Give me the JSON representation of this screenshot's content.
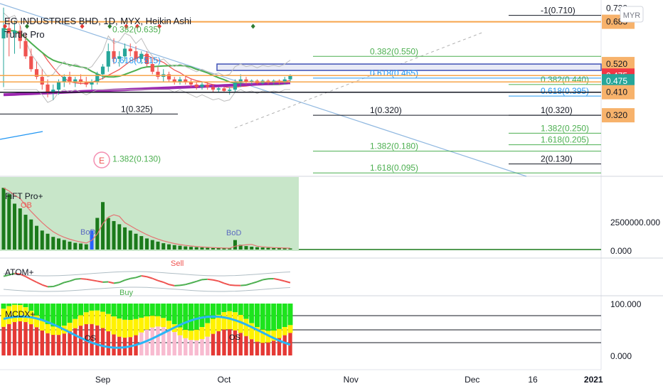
{
  "header": {
    "title": "EG INDUSTRIES BHD, 1D, MYX, Heikin Ashi",
    "indicator": "Turtle Pro",
    "currency": "MYR"
  },
  "colors": {
    "up": "#26a69a",
    "down": "#ef5350",
    "green_line": "#4caf50",
    "purple": "#9c27b0",
    "orange_tag": "#f7b26b",
    "red_tag": "#f23645",
    "teal_tag": "#26a69a",
    "blue": "#2196f3"
  },
  "price_tags": [
    {
      "label": "0.738",
      "value": 0.738,
      "style": "plain"
    },
    {
      "label": "0.685",
      "value": 0.685,
      "style": "orange"
    },
    {
      "label": "0.520",
      "value": 0.52,
      "style": "orange"
    },
    {
      "label": "0.475",
      "value": 0.475,
      "style": "red"
    },
    {
      "label": "0.475",
      "value": 0.453,
      "style": "teal"
    },
    {
      "label": "0.410",
      "value": 0.41,
      "style": "orange"
    },
    {
      "label": "0.320",
      "value": 0.32,
      "style": "orange"
    }
  ],
  "fib_labels": [
    {
      "text": "-1(0.710)",
      "value": 0.71,
      "group": "right"
    },
    {
      "text": "0.382(0.635)",
      "value": 0.635,
      "group": "left"
    },
    {
      "text": "0.382(0.550)",
      "value": 0.55,
      "group": "mid"
    },
    {
      "text": "0.618(0.515)",
      "value": 0.515,
      "group": "left"
    },
    {
      "text": "0.618(0.465)",
      "value": 0.465,
      "group": "mid"
    },
    {
      "text": "0.382(0.440)",
      "value": 0.44,
      "group": "right"
    },
    {
      "text": "0.618(0.395)",
      "value": 0.395,
      "group": "right"
    },
    {
      "text": "1(0.325)",
      "value": 0.325,
      "group": "left"
    },
    {
      "text": "1(0.320)",
      "value": 0.32,
      "group": "mid"
    },
    {
      "text": "1(0.320)",
      "value": 0.32,
      "group": "right"
    },
    {
      "text": "1.382(0.250)",
      "value": 0.25,
      "group": "right"
    },
    {
      "text": "1.618(0.205)",
      "value": 0.205,
      "group": "right"
    },
    {
      "text": "1.382(0.180)",
      "value": 0.18,
      "group": "mid"
    },
    {
      "text": "1.382(0.130)",
      "value": 0.13,
      "group": "left"
    },
    {
      "text": "2(0.130)",
      "value": 0.13,
      "group": "right"
    },
    {
      "text": "1.618(0.095)",
      "value": 0.095,
      "group": "mid"
    }
  ],
  "chart_data": {
    "type": "candlestick",
    "price_scale": {
      "min": 0.09,
      "max": 0.745
    },
    "candles": [
      {
        "o": 0.62,
        "h": 0.74,
        "l": 0.43,
        "c": 0.66
      },
      {
        "o": 0.66,
        "h": 0.7,
        "l": 0.55,
        "c": 0.64
      },
      {
        "o": 0.64,
        "h": 0.69,
        "l": 0.56,
        "c": 0.65
      },
      {
        "o": 0.65,
        "h": 0.67,
        "l": 0.58,
        "c": 0.61
      },
      {
        "o": 0.61,
        "h": 0.64,
        "l": 0.54,
        "c": 0.55
      },
      {
        "o": 0.55,
        "h": 0.58,
        "l": 0.49,
        "c": 0.5
      },
      {
        "o": 0.5,
        "h": 0.53,
        "l": 0.46,
        "c": 0.47
      },
      {
        "o": 0.47,
        "h": 0.5,
        "l": 0.42,
        "c": 0.44
      },
      {
        "o": 0.44,
        "h": 0.46,
        "l": 0.39,
        "c": 0.41
      },
      {
        "o": 0.41,
        "h": 0.44,
        "l": 0.38,
        "c": 0.42
      },
      {
        "o": 0.42,
        "h": 0.46,
        "l": 0.4,
        "c": 0.45
      },
      {
        "o": 0.45,
        "h": 0.48,
        "l": 0.43,
        "c": 0.47
      },
      {
        "o": 0.47,
        "h": 0.49,
        "l": 0.44,
        "c": 0.45
      },
      {
        "o": 0.45,
        "h": 0.47,
        "l": 0.43,
        "c": 0.46
      },
      {
        "o": 0.46,
        "h": 0.48,
        "l": 0.44,
        "c": 0.45
      },
      {
        "o": 0.45,
        "h": 0.47,
        "l": 0.43,
        "c": 0.44
      },
      {
        "o": 0.44,
        "h": 0.46,
        "l": 0.42,
        "c": 0.45
      },
      {
        "o": 0.45,
        "h": 0.49,
        "l": 0.44,
        "c": 0.48
      },
      {
        "o": 0.48,
        "h": 0.52,
        "l": 0.46,
        "c": 0.51
      },
      {
        "o": 0.51,
        "h": 0.6,
        "l": 0.49,
        "c": 0.57
      },
      {
        "o": 0.57,
        "h": 0.62,
        "l": 0.52,
        "c": 0.54
      },
      {
        "o": 0.54,
        "h": 0.57,
        "l": 0.51,
        "c": 0.55
      },
      {
        "o": 0.55,
        "h": 0.6,
        "l": 0.53,
        "c": 0.58
      },
      {
        "o": 0.58,
        "h": 0.6,
        "l": 0.55,
        "c": 0.57
      },
      {
        "o": 0.57,
        "h": 0.59,
        "l": 0.53,
        "c": 0.54
      },
      {
        "o": 0.54,
        "h": 0.57,
        "l": 0.52,
        "c": 0.56
      },
      {
        "o": 0.56,
        "h": 0.57,
        "l": 0.51,
        "c": 0.52
      },
      {
        "o": 0.52,
        "h": 0.54,
        "l": 0.48,
        "c": 0.49
      },
      {
        "o": 0.49,
        "h": 0.51,
        "l": 0.46,
        "c": 0.47
      },
      {
        "o": 0.47,
        "h": 0.5,
        "l": 0.45,
        "c": 0.48
      },
      {
        "o": 0.48,
        "h": 0.49,
        "l": 0.45,
        "c": 0.46
      },
      {
        "o": 0.46,
        "h": 0.47,
        "l": 0.44,
        "c": 0.45
      },
      {
        "o": 0.45,
        "h": 0.47,
        "l": 0.44,
        "c": 0.46
      },
      {
        "o": 0.46,
        "h": 0.47,
        "l": 0.44,
        "c": 0.45
      },
      {
        "o": 0.45,
        "h": 0.46,
        "l": 0.43,
        "c": 0.44
      },
      {
        "o": 0.44,
        "h": 0.45,
        "l": 0.42,
        "c": 0.43
      },
      {
        "o": 0.43,
        "h": 0.45,
        "l": 0.42,
        "c": 0.44
      },
      {
        "o": 0.44,
        "h": 0.45,
        "l": 0.42,
        "c": 0.43
      },
      {
        "o": 0.43,
        "h": 0.44,
        "l": 0.41,
        "c": 0.42
      },
      {
        "o": 0.42,
        "h": 0.43,
        "l": 0.41,
        "c": 0.425
      },
      {
        "o": 0.425,
        "h": 0.43,
        "l": 0.41,
        "c": 0.415
      },
      {
        "o": 0.415,
        "h": 0.43,
        "l": 0.4,
        "c": 0.42
      },
      {
        "o": 0.42,
        "h": 0.46,
        "l": 0.41,
        "c": 0.45
      },
      {
        "o": 0.45,
        "h": 0.48,
        "l": 0.43,
        "c": 0.46
      },
      {
        "o": 0.46,
        "h": 0.47,
        "l": 0.44,
        "c": 0.45
      },
      {
        "o": 0.45,
        "h": 0.46,
        "l": 0.44,
        "c": 0.455
      },
      {
        "o": 0.455,
        "h": 0.46,
        "l": 0.44,
        "c": 0.445
      },
      {
        "o": 0.445,
        "h": 0.46,
        "l": 0.44,
        "c": 0.455
      },
      {
        "o": 0.455,
        "h": 0.46,
        "l": 0.44,
        "c": 0.45
      },
      {
        "o": 0.45,
        "h": 0.46,
        "l": 0.44,
        "c": 0.455
      },
      {
        "o": 0.455,
        "h": 0.46,
        "l": 0.44,
        "c": 0.45
      },
      {
        "o": 0.45,
        "h": 0.47,
        "l": 0.44,
        "c": 0.46
      },
      {
        "o": 0.46,
        "h": 0.48,
        "l": 0.45,
        "c": 0.475
      }
    ],
    "markers": [
      {
        "i": 0,
        "kind": "red-diamond"
      },
      {
        "i": 4,
        "kind": "green-diamond"
      },
      {
        "i": 14,
        "kind": "red-diamond"
      },
      {
        "i": 19,
        "kind": "green-diamond"
      },
      {
        "i": 22,
        "kind": "red-diamond"
      },
      {
        "i": 24,
        "kind": "red-diamond"
      },
      {
        "i": 28,
        "kind": "red-diamond"
      },
      {
        "i": 45,
        "kind": "green-diamond"
      }
    ],
    "event_marker": "E",
    "x_labels": [
      {
        "text": "Sep",
        "i": 18
      },
      {
        "text": "Oct",
        "i": 40
      },
      {
        "text": "Nov",
        "i": 63
      },
      {
        "text": "Dec",
        "i": 85
      },
      {
        "text": "16",
        "i": 96
      },
      {
        "text": "2021",
        "i": 107
      }
    ],
    "fift": {
      "name": "FiFT Pro+",
      "scale_labels": [
        "2500000.000",
        "0.000"
      ],
      "scale_values": [
        2500000,
        0
      ],
      "max": 4000000,
      "volumes": [
        3900000,
        3500000,
        2900000,
        2600000,
        2200000,
        1900000,
        1500000,
        1200000,
        1000000,
        800000,
        700000,
        600000,
        500000,
        420000,
        380000,
        330000,
        1200000,
        2000000,
        3000000,
        2000000,
        1800000,
        1600000,
        1400000,
        1200000,
        1000000,
        850000,
        700000,
        600000,
        500000,
        400000,
        330000,
        280000,
        240000,
        200000,
        170000,
        150000,
        130000,
        110000,
        100000,
        90000,
        80000,
        70000,
        600000,
        300000,
        220000,
        180000,
        150000,
        130000,
        110000,
        100000,
        90000,
        80000,
        70000
      ],
      "labels": [
        "OB",
        "BoD",
        "BoD"
      ]
    },
    "atom": {
      "name": "ATOM+",
      "labels": [
        "Sell",
        "Buy"
      ]
    },
    "mcdx": {
      "name": "MCDX+",
      "scale_labels": [
        "100.000",
        "0.000"
      ],
      "scale_values": [
        100,
        0
      ],
      "labels": [
        "OS",
        "OS"
      ]
    }
  }
}
